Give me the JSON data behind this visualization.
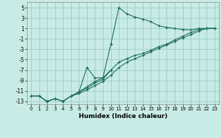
{
  "xlabel": "Humidex (Indice chaleur)",
  "bg_color": "#c8ebe5",
  "grid_color": "#99ccc4",
  "line_color": "#1a6b5a",
  "xlim": [
    -0.5,
    23.5
  ],
  "ylim": [
    -13.5,
    6.0
  ],
  "xticks": [
    0,
    1,
    2,
    3,
    4,
    5,
    6,
    7,
    8,
    9,
    10,
    11,
    12,
    13,
    14,
    15,
    16,
    17,
    18,
    19,
    20,
    21,
    22,
    23
  ],
  "yticks": [
    -13,
    -11,
    -9,
    -7,
    -5,
    -3,
    -1,
    1,
    3,
    5
  ],
  "series": [
    {
      "x": [
        0,
        1,
        2,
        3,
        4,
        5,
        6,
        7,
        8,
        9,
        10,
        11,
        12,
        13,
        14,
        15,
        16,
        17,
        18,
        19,
        20,
        21,
        22,
        23
      ],
      "y": [
        -12,
        -12,
        -13,
        -12.5,
        -13,
        -12,
        -11.2,
        -10.2,
        -9.2,
        -8.5,
        -2.0,
        5.0,
        3.8,
        3.2,
        2.8,
        2.3,
        1.5,
        1.2,
        1.0,
        0.8,
        0.7,
        1.0,
        1.0,
        1.0
      ]
    },
    {
      "x": [
        0,
        1,
        2,
        3,
        4,
        5,
        6,
        7,
        8,
        9,
        10,
        11,
        12,
        13,
        14,
        15,
        16,
        17,
        18,
        19,
        20,
        21,
        22,
        23
      ],
      "y": [
        -12,
        -12,
        -13,
        -12.5,
        -13,
        -12,
        -11.2,
        -10.5,
        -9.5,
        -8.8,
        -7.0,
        -5.5,
        -4.8,
        -4.2,
        -3.8,
        -3.2,
        -2.5,
        -2.0,
        -1.2,
        -0.5,
        0.2,
        0.8,
        1.0,
        1.0
      ]
    },
    {
      "x": [
        0,
        1,
        2,
        3,
        4,
        5,
        6,
        7,
        8,
        9,
        10,
        11,
        12,
        13,
        14,
        15,
        16,
        17,
        18,
        19,
        20,
        21,
        22,
        23
      ],
      "y": [
        -12,
        -12,
        -13,
        -12.5,
        -13,
        -12,
        -11.5,
        -10.8,
        -10.0,
        -9.2,
        -8.0,
        -6.5,
        -5.5,
        -4.8,
        -4.2,
        -3.5,
        -2.8,
        -2.2,
        -1.5,
        -0.8,
        -0.2,
        0.5,
        1.0,
        1.0
      ]
    },
    {
      "x": [
        6,
        7,
        8,
        9,
        10
      ],
      "y": [
        -11.2,
        -6.5,
        -8.5,
        -8.5,
        -7.0
      ]
    }
  ]
}
